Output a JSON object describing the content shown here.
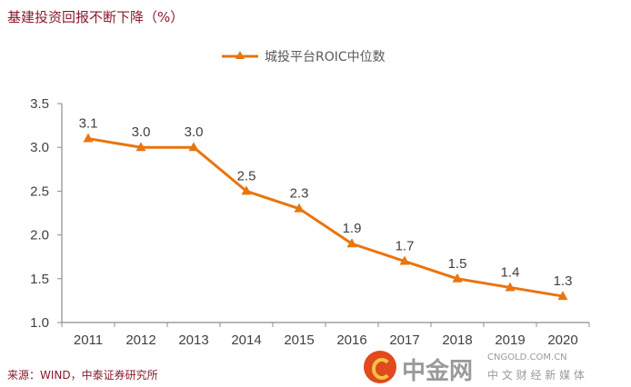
{
  "header": {
    "title": "基建投资回报不断下降（%）"
  },
  "footer": {
    "source": "来源：WIND，中泰证券研究所"
  },
  "watermark": {
    "brand": "中金网",
    "domain": "CNGOLD.COM.CN",
    "tagline": "中 文 财 经 新 媒 体"
  },
  "chart_data": {
    "type": "line",
    "title": "基建投资回报不断下降（%）",
    "xlabel": "",
    "ylabel": "",
    "categories": [
      "2011",
      "2012",
      "2013",
      "2014",
      "2015",
      "2016",
      "2017",
      "2018",
      "2019",
      "2020"
    ],
    "series": [
      {
        "name": "城投平台ROIC中位数",
        "values": [
          3.1,
          3.0,
          3.0,
          2.5,
          2.3,
          1.9,
          1.7,
          1.5,
          1.4,
          1.3
        ],
        "color": "#e8750f"
      }
    ],
    "data_labels": [
      "3.1",
      "3.0",
      "3.0",
      "2.5",
      "2.3",
      "1.9",
      "1.7",
      "1.5",
      "1.4",
      "1.3"
    ],
    "ylim": [
      1.0,
      3.5
    ],
    "yticks": [
      "1.0",
      "1.5",
      "2.0",
      "2.5",
      "3.0",
      "3.5"
    ],
    "ytick_values": [
      1.0,
      1.5,
      2.0,
      2.5,
      3.0,
      3.5
    ],
    "grid": false,
    "legend": {
      "position": "top-center",
      "marker": "triangle"
    }
  }
}
